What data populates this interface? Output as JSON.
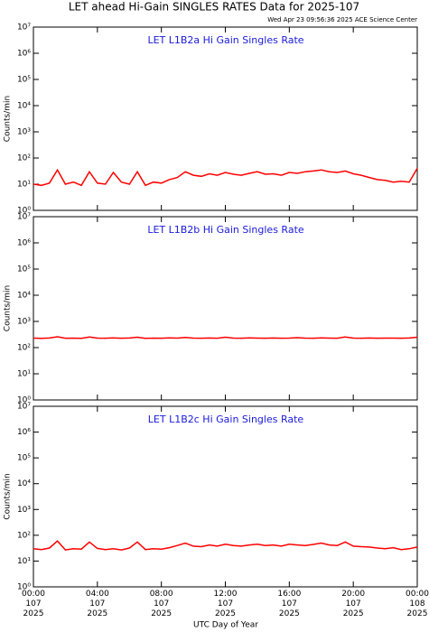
{
  "title": "LET ahead Hi-Gain SINGLES RATES Data for 2025-107",
  "timestamp": "Wed Apr 23 09:56:36 2025 ACE Science Center",
  "chart_data": [
    {
      "type": "line",
      "title": "LET L1B2a Hi Gain Singles Rate",
      "y_label": "Counts/min",
      "log_y": true,
      "color": "#ff0000",
      "ylim": [
        1,
        10000000
      ],
      "yticks": [
        {
          "value": 1,
          "label": "10⁰"
        },
        {
          "value": 10,
          "label": "10¹"
        },
        {
          "value": 100,
          "label": "10²"
        },
        {
          "value": 1000,
          "label": "10³"
        },
        {
          "value": 10000,
          "label": "10⁴"
        },
        {
          "value": 100000,
          "label": "10⁵"
        },
        {
          "value": 1000000,
          "label": "10⁶"
        },
        {
          "value": 10000000,
          "label": "10⁷"
        }
      ],
      "x": [
        0,
        0.5,
        1,
        1.5,
        2,
        2.5,
        3,
        3.5,
        4,
        4.5,
        5,
        5.5,
        6,
        6.5,
        7,
        7.5,
        8,
        8.5,
        9,
        9.5,
        10,
        10.5,
        11,
        11.5,
        12,
        12.5,
        13,
        13.5,
        14,
        14.5,
        15,
        15.5,
        16,
        16.5,
        17,
        17.5,
        18,
        18.5,
        19,
        19.5,
        20,
        20.5,
        21,
        21.5,
        22,
        22.5,
        23,
        23.5,
        24
      ],
      "values": [
        10,
        9,
        11,
        35,
        10,
        12,
        9,
        30,
        11,
        10,
        28,
        12,
        10,
        30,
        9,
        12,
        11,
        15,
        18,
        30,
        22,
        20,
        25,
        22,
        28,
        24,
        22,
        26,
        30,
        24,
        25,
        22,
        28,
        26,
        30,
        32,
        35,
        30,
        28,
        32,
        25,
        22,
        18,
        15,
        14,
        12,
        13,
        12,
        40
      ]
    },
    {
      "type": "line",
      "title": "LET L1B2b Hi Gain Singles Rate",
      "y_label": "Counts/min",
      "log_y": true,
      "color": "#ff0000",
      "ylim": [
        1,
        10000000
      ],
      "yticks": [
        {
          "value": 1,
          "label": "10⁰"
        },
        {
          "value": 10,
          "label": "10¹"
        },
        {
          "value": 100,
          "label": "10²"
        },
        {
          "value": 1000,
          "label": "10³"
        },
        {
          "value": 10000,
          "label": "10⁴"
        },
        {
          "value": 100000,
          "label": "10⁵"
        },
        {
          "value": 1000000,
          "label": "10⁶"
        },
        {
          "value": 10000000,
          "label": "10⁷"
        }
      ],
      "x": [
        0,
        0.5,
        1,
        1.5,
        2,
        2.5,
        3,
        3.5,
        4,
        4.5,
        5,
        5.5,
        6,
        6.5,
        7,
        7.5,
        8,
        8.5,
        9,
        9.5,
        10,
        10.5,
        11,
        11.5,
        12,
        12.5,
        13,
        13.5,
        14,
        14.5,
        15,
        15.5,
        16,
        16.5,
        17,
        17.5,
        18,
        18.5,
        19,
        19.5,
        20,
        20.5,
        21,
        21.5,
        22,
        22.5,
        23,
        23.5,
        24
      ],
      "values": [
        230,
        225,
        232,
        260,
        228,
        230,
        226,
        255,
        231,
        229,
        234,
        228,
        232,
        250,
        227,
        230,
        229,
        233,
        231,
        245,
        230,
        228,
        232,
        229,
        250,
        231,
        228,
        233,
        230,
        229,
        232,
        228,
        231,
        240,
        230,
        229,
        233,
        231,
        228,
        255,
        230,
        229,
        232,
        228,
        231,
        230,
        229,
        232,
        250
      ]
    },
    {
      "type": "line",
      "title": "LET L1B2c Hi Gain Singles Rate",
      "y_label": "Counts/min",
      "x_label": "UTC Day of Year",
      "log_y": true,
      "color": "#ff0000",
      "ylim": [
        1,
        10000000
      ],
      "yticks": [
        {
          "value": 1,
          "label": "10⁰"
        },
        {
          "value": 10,
          "label": "10¹"
        },
        {
          "value": 100,
          "label": "10²"
        },
        {
          "value": 1000,
          "label": "10³"
        },
        {
          "value": 10000,
          "label": "10⁴"
        },
        {
          "value": 100000,
          "label": "10⁵"
        },
        {
          "value": 1000000,
          "label": "10⁶"
        },
        {
          "value": 10000000,
          "label": "10⁷"
        }
      ],
      "xlim": [
        0,
        24
      ],
      "xticks": [
        {
          "value": 0,
          "label": "00:00\n107\n2025"
        },
        {
          "value": 4,
          "label": "04:00\n107\n2025"
        },
        {
          "value": 8,
          "label": "08:00\n107\n2025"
        },
        {
          "value": 12,
          "label": "12:00\n107\n2025"
        },
        {
          "value": 16,
          "label": "16:00\n107\n2025"
        },
        {
          "value": 20,
          "label": "20:00\n107\n2025"
        },
        {
          "value": 24,
          "label": "00:00\n108\n2025"
        }
      ],
      "x": [
        0,
        0.5,
        1,
        1.5,
        2,
        2.5,
        3,
        3.5,
        4,
        4.5,
        5,
        5.5,
        6,
        6.5,
        7,
        7.5,
        8,
        8.5,
        9,
        9.5,
        10,
        10.5,
        11,
        11.5,
        12,
        12.5,
        13,
        13.5,
        14,
        14.5,
        15,
        15.5,
        16,
        16.5,
        17,
        17.5,
        18,
        18.5,
        19,
        19.5,
        20,
        20.5,
        21,
        21.5,
        22,
        22.5,
        23,
        23.5,
        24
      ],
      "values": [
        30,
        28,
        32,
        60,
        27,
        30,
        29,
        55,
        31,
        28,
        30,
        27,
        32,
        55,
        28,
        30,
        29,
        33,
        40,
        50,
        38,
        36,
        42,
        38,
        45,
        40,
        38,
        42,
        45,
        40,
        42,
        38,
        45,
        42,
        40,
        44,
        50,
        42,
        40,
        55,
        38,
        36,
        35,
        32,
        30,
        33,
        28,
        30,
        35
      ]
    }
  ]
}
